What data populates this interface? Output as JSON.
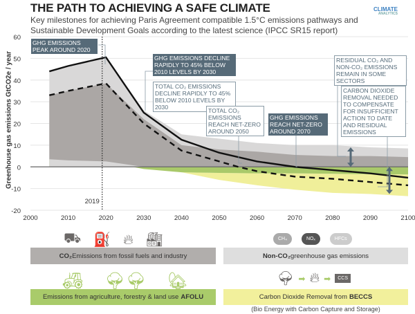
{
  "header": {
    "title": "THE PATH TO ACHIEVING A SAFE CLIMATE",
    "subtitle_line1": "Key milestones for achieving Paris Agreement compatible 1.5°C emissions pathways and",
    "subtitle_line2": "Sustainable Development Goals according to the latest science (IPCC SR15 report)",
    "logo": "CLIMATE ANALYTICS"
  },
  "chart_data": {
    "type": "area",
    "ylabel": "Greenhouse gas emissions GtCO2e / year",
    "xlim": [
      2000,
      2100
    ],
    "ylim": [
      -20,
      60
    ],
    "xticks": [
      2000,
      2010,
      2020,
      2030,
      2040,
      2050,
      2060,
      2070,
      2080,
      2090,
      2100
    ],
    "yticks": [
      -20,
      -10,
      0,
      10,
      20,
      30,
      40,
      50,
      60
    ],
    "grid": true,
    "vline": {
      "x": 2019,
      "label": "2019"
    },
    "series": [
      {
        "key": "nonco2_top",
        "x": [
          2005,
          2010,
          2020,
          2030,
          2040,
          2050,
          2060,
          2070,
          2080,
          2090,
          2100
        ],
        "y": [
          44,
          46.5,
          50.5,
          26,
          15,
          13,
          11,
          10,
          10,
          9,
          8.5
        ],
        "color": "#d9d8d8"
      },
      {
        "key": "fossil_top",
        "x": [
          2005,
          2010,
          2020,
          2030,
          2040,
          2050,
          2060,
          2070,
          2080,
          2090,
          2100
        ],
        "y": [
          33,
          35,
          38.5,
          22,
          10,
          8,
          7,
          5.5,
          5,
          5,
          4.5
        ],
        "color": "#aba7a5"
      },
      {
        "key": "afolu",
        "x": [
          2005,
          2010,
          2020,
          2027,
          2030,
          2040,
          2050,
          2060,
          2070,
          2080,
          2090,
          2100
        ],
        "y": [
          3.5,
          3,
          2.5,
          0,
          -1,
          -2.5,
          -2.8,
          -3,
          -3,
          -3.2,
          -3.4,
          -3.5
        ],
        "color": "#a9c96a"
      },
      {
        "key": "beccs_bottom",
        "x": [
          2027,
          2030,
          2040,
          2050,
          2060,
          2070,
          2080,
          2090,
          2100
        ],
        "y": [
          0,
          -1,
          -2.5,
          -6,
          -8.5,
          -10.5,
          -12,
          -12.5,
          -13.5
        ],
        "color": "#f0ef9a"
      },
      {
        "key": "ghg_total",
        "style": "solid",
        "x": [
          2005,
          2010,
          2020,
          2030,
          2040,
          2050,
          2060,
          2070,
          2080,
          2090,
          2100
        ],
        "y": [
          44,
          46.5,
          50.5,
          25,
          12.5,
          6.5,
          2.5,
          0,
          -1.5,
          -3,
          -5
        ]
      },
      {
        "key": "co2_total",
        "style": "dashed",
        "x": [
          2005,
          2010,
          2020,
          2030,
          2040,
          2050,
          2055,
          2060,
          2070,
          2080,
          2090,
          2100
        ],
        "y": [
          33,
          35,
          38.5,
          20,
          7.5,
          2.5,
          0,
          -2,
          -4.5,
          -5.5,
          -7,
          -8.5
        ]
      }
    ],
    "annotations": [
      {
        "text": "GHG EMISSIONS PEAK AROUND 2020",
        "style": "dark"
      },
      {
        "text": "GHG EMISSIONS DECLINE RAPIDLY TO 45% BELOW 2010 LEVELS BY 2030",
        "style": "dark"
      },
      {
        "text": "TOTAL CO₂ EMISSIONS DECLINE RAPIDLY TO 45% BELOW 2010 LEVELS BY 2030",
        "style": "light"
      },
      {
        "text": "TOTAL CO₂ EMISSIONS REACH NET-ZERO AROUND 2050",
        "style": "light"
      },
      {
        "text": "GHG EMISSIONS REACH NET-ZERO AROUND 2070",
        "style": "dark"
      },
      {
        "text": "RESIDUAL CO₂ AND NON-CO₂ EMISSIONS REMAIN IN SOME SECTORS",
        "style": "light"
      },
      {
        "text": "CARBON DIOXIDE REMOVAL NEEDED TO COMPENSATE FOR INSUFFICIENT ACTION TO DATE AND RESIDUAL EMISSIONS",
        "style": "light"
      }
    ]
  },
  "legend": {
    "co2": {
      "bold": "CO₂",
      "text": " Emissions from fossil fuels and industry",
      "color": "#b1aeac"
    },
    "nonco2": {
      "bold": "Non-CO₂",
      "text": " greenhouse gas emissions",
      "color": "#dedede",
      "gases": [
        "CH₄",
        "NOₓ",
        "HFCs"
      ]
    },
    "afolu": {
      "text": "Emissions from agriculture, forestry & land use ",
      "bold": "AFOLU",
      "color": "#a9cb6a"
    },
    "beccs": {
      "text": "Carbon Dioxide Removal from ",
      "bold": "BECCS",
      "color": "#f2f09c",
      "ccs": "CCS",
      "note": "(Bio Energy with Carbon Capture and Storage)"
    }
  }
}
